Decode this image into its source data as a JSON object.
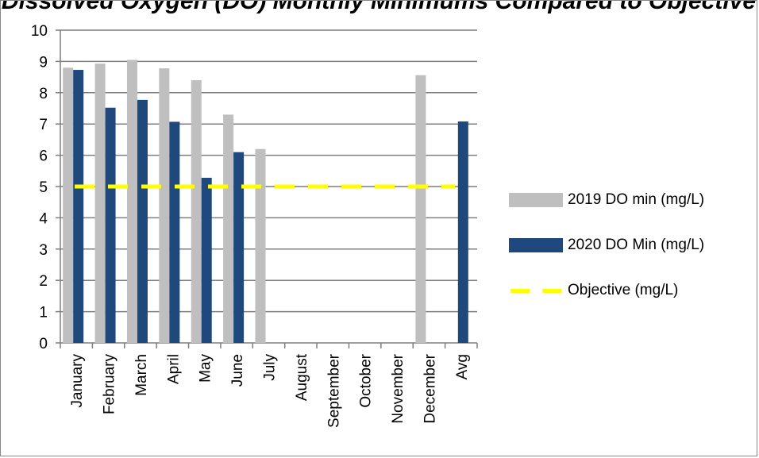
{
  "chart_data": {
    "type": "bar",
    "title": "Dissolved Oxygen (DO) Monthly Minimums Compared to Objective",
    "categories": [
      "January",
      "February",
      "March",
      "April",
      "May",
      "June",
      "July",
      "August",
      "September",
      "October",
      "November",
      "December",
      "Avg"
    ],
    "series": [
      {
        "name": "2019 DO min (mg/L)",
        "color": "#bfbfbf",
        "values": [
          8.8,
          8.93,
          9.05,
          8.78,
          8.4,
          7.3,
          6.2,
          null,
          null,
          null,
          null,
          8.56,
          null
        ]
      },
      {
        "name": "2020 DO Min (mg/L)",
        "color": "#1f497d",
        "values": [
          8.73,
          7.52,
          7.77,
          7.07,
          5.28,
          6.1,
          null,
          null,
          null,
          null,
          null,
          null,
          7.08
        ]
      }
    ],
    "objective": {
      "name": "Objective (mg/L)",
      "value": 5,
      "color": "#ffff00",
      "style": "dashed"
    },
    "ylim": [
      0,
      10
    ],
    "yticks": [
      0,
      1,
      2,
      3,
      4,
      5,
      6,
      7,
      8,
      9,
      10
    ],
    "grid": true,
    "legend_position": "right",
    "xlabel": "",
    "ylabel": ""
  }
}
